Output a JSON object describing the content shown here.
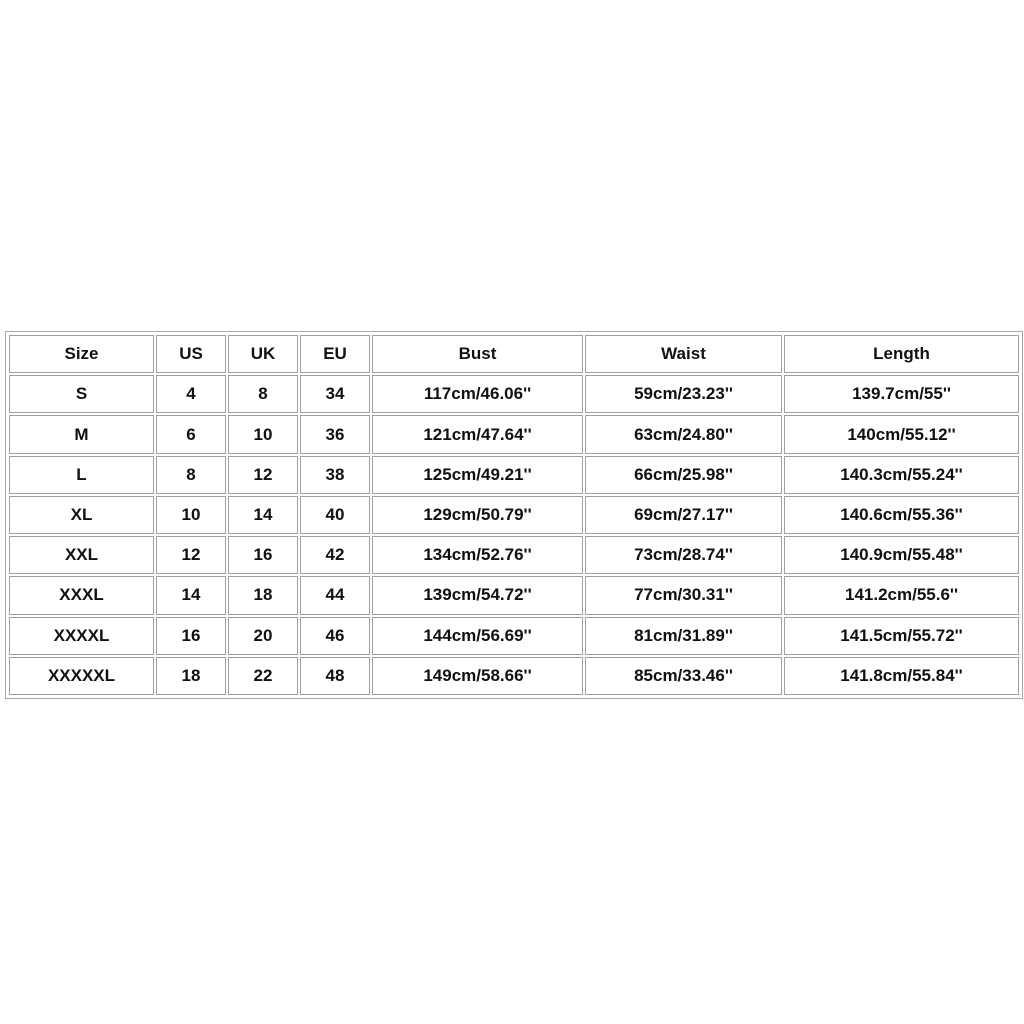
{
  "table": {
    "header": [
      "Size",
      "US",
      "UK",
      "EU",
      "Bust",
      "Waist",
      "Length"
    ],
    "rows": [
      [
        "S",
        "4",
        "8",
        "34",
        "117cm/46.06''",
        "59cm/23.23''",
        "139.7cm/55''"
      ],
      [
        "M",
        "6",
        "10",
        "36",
        "121cm/47.64''",
        "63cm/24.80''",
        "140cm/55.12''"
      ],
      [
        "L",
        "8",
        "12",
        "38",
        "125cm/49.21''",
        "66cm/25.98''",
        "140.3cm/55.24''"
      ],
      [
        "XL",
        "10",
        "14",
        "40",
        "129cm/50.79''",
        "69cm/27.17''",
        "140.6cm/55.36''"
      ],
      [
        "XXL",
        "12",
        "16",
        "42",
        "134cm/52.76''",
        "73cm/28.74''",
        "140.9cm/55.48''"
      ],
      [
        "XXXL",
        "14",
        "18",
        "44",
        "139cm/54.72''",
        "77cm/30.31''",
        "141.2cm/55.6''"
      ],
      [
        "XXXXL",
        "16",
        "20",
        "46",
        "144cm/56.69''",
        "81cm/31.89''",
        "141.5cm/55.72''"
      ],
      [
        "XXXXXL",
        "18",
        "22",
        "48",
        "149cm/58.66''",
        "85cm/33.46''",
        "141.8cm/55.84''"
      ]
    ]
  }
}
